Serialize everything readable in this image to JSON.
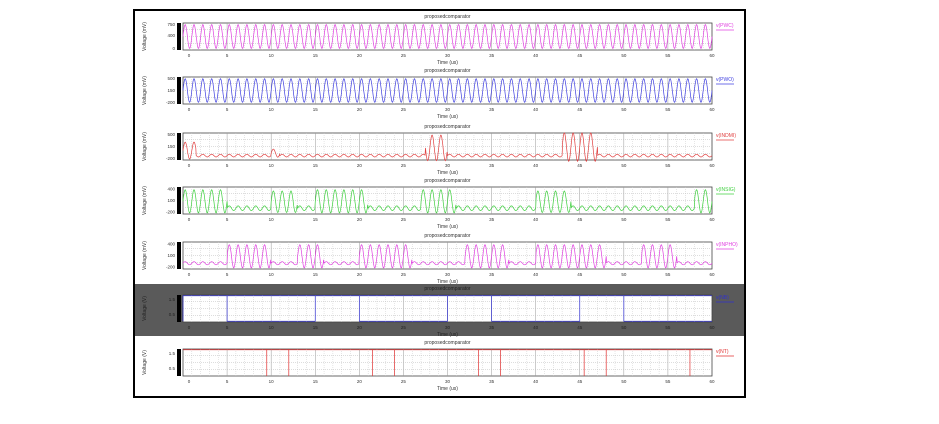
{
  "chart_data": {
    "type": "line",
    "figure_title": "proposedcomparator",
    "x_unit": "us",
    "xlim": [
      0,
      60
    ],
    "xticks": [
      "0",
      "5",
      "10",
      "15",
      "20",
      "25",
      "30",
      "35",
      "40",
      "45",
      "50",
      "55",
      "60"
    ],
    "panels": [
      {
        "title": "proposedcomparator",
        "xlabel": "Time (us)",
        "ylabel": "Voltage (mV)",
        "legend": "v(PWC)",
        "color": "#e040e0",
        "ylim": [
          -50,
          800
        ],
        "yticks": [
          "750",
          "400",
          "0"
        ],
        "yticks_values": [
          750,
          400,
          0
        ],
        "kind": "sine",
        "min": 0,
        "max": 750,
        "cycles_per_us": 1.0,
        "dark": false
      },
      {
        "title": "proposedcomparator",
        "xlabel": "Time (us)",
        "ylabel": "Voltage (mV)",
        "legend": "v(PWO)",
        "color": "#4040e0",
        "ylim": [
          -250,
          550
        ],
        "yticks": [
          "500",
          "150",
          "-200"
        ],
        "yticks_values": [
          500,
          150,
          -200
        ],
        "kind": "sine",
        "min": -200,
        "max": 500,
        "cycles_per_us": 1.0,
        "dark": false
      },
      {
        "title": "proposedcomparator",
        "xlabel": "Time (us)",
        "ylabel": "Voltage (mV)",
        "legend": "v(INDMI)",
        "color": "#e04040",
        "ylim": [
          -250,
          550
        ],
        "yticks": [
          "500",
          "150",
          "-200"
        ],
        "yticks_values": [
          500,
          150,
          -200
        ],
        "kind": "burst",
        "base": -120,
        "base_amp": 40,
        "cycles_per_us": 1.0,
        "bursts": [
          [
            0,
            1.5,
            250
          ],
          [
            10,
            11,
            120
          ],
          [
            27.5,
            30,
            380
          ],
          [
            43,
            47,
            420
          ]
        ],
        "dark": false
      },
      {
        "title": "proposedcomparator",
        "xlabel": "Time (us)",
        "ylabel": "Voltage (mV)",
        "legend": "v(INSIG)",
        "color": "#40d040",
        "ylim": [
          -250,
          450
        ],
        "yticks": [
          "400",
          "100",
          "-200"
        ],
        "yticks_values": [
          400,
          100,
          -200
        ],
        "kind": "burst",
        "base": -100,
        "base_amp": 60,
        "cycles_per_us": 1.0,
        "bursts": [
          [
            0,
            5,
            300
          ],
          [
            10,
            13,
            280
          ],
          [
            15,
            21,
            300
          ],
          [
            27,
            31,
            300
          ],
          [
            40,
            44,
            280
          ],
          [
            58,
            60,
            300
          ]
        ],
        "dark": false
      },
      {
        "title": "proposedcomparator",
        "xlabel": "Time (us)",
        "ylabel": "Voltage (mV)",
        "legend": "v(INPHO)",
        "color": "#e040e0",
        "ylim": [
          -250,
          450
        ],
        "yticks": [
          "400",
          "100",
          "-200"
        ],
        "yticks_values": [
          400,
          100,
          -200
        ],
        "kind": "burst",
        "base": -100,
        "base_amp": 40,
        "cycles_per_us": 1.0,
        "bursts": [
          [
            5,
            10,
            300
          ],
          [
            13,
            16,
            300
          ],
          [
            20,
            26,
            300
          ],
          [
            32,
            37,
            300
          ],
          [
            40,
            48,
            300
          ],
          [
            52,
            56,
            300
          ]
        ],
        "dark": false
      },
      {
        "title": "proposedcomparator",
        "xlabel": "Time (us)",
        "ylabel": "Voltage (V)",
        "legend": "v(NB)",
        "color": "#3030d0",
        "ylim": [
          0,
          1.8
        ],
        "yticks": [
          "1.5",
          "0.5"
        ],
        "yticks_values": [
          1.5,
          0.5
        ],
        "kind": "digital",
        "low": 0.05,
        "high": 1.75,
        "high_intervals": [
          [
            0,
            5
          ],
          [
            15,
            20
          ],
          [
            30,
            35
          ],
          [
            45,
            50
          ]
        ],
        "dark": true
      },
      {
        "title": "proposedcomparator",
        "xlabel": "Time (us)",
        "ylabel": "Voltage (V)",
        "legend": "v(NT)",
        "color": "#e03030",
        "ylim": [
          0,
          1.8
        ],
        "yticks": [
          "1.5",
          "0.5"
        ],
        "yticks_values": [
          1.5,
          0.5
        ],
        "kind": "digital",
        "low": 1.75,
        "high": 1.75,
        "edges": [
          9.5,
          12,
          21.5,
          24,
          33.5,
          36,
          45.5,
          48,
          57.5
        ],
        "dark": false
      }
    ]
  }
}
